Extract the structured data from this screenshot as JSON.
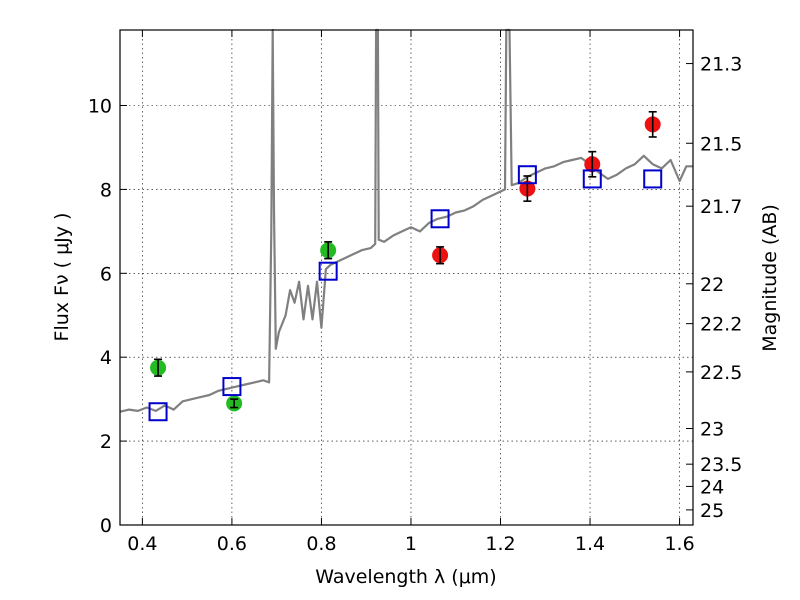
{
  "chart_data": {
    "type": "scatter",
    "xlabel": "Wavelength  λ (μm)",
    "ylabel": "Flux  Fν  ( μJy )",
    "ylabel_right": "Magnitude (AB)",
    "xlim": [
      0.35,
      1.63
    ],
    "ylim": [
      0,
      11.8
    ],
    "x_ticks": [
      0.4,
      0.6,
      0.8,
      1.0,
      1.2,
      1.4,
      1.6
    ],
    "x_tick_labels": [
      "0.4",
      "0.6",
      "0.8",
      "1",
      "1.2",
      "1.4",
      "1.6"
    ],
    "y_ticks": [
      0,
      2,
      4,
      6,
      8,
      10
    ],
    "y_tick_labels": [
      "0",
      "2",
      "4",
      "6",
      "8",
      "10"
    ],
    "mag_ticks": [
      {
        "label": "21.3",
        "flux": 11.0
      },
      {
        "label": "21.5",
        "flux": 9.1
      },
      {
        "label": "21.7",
        "flux": 7.6
      },
      {
        "label": "22",
        "flux": 5.75
      },
      {
        "label": "22.2",
        "flux": 4.8
      },
      {
        "label": "22.5",
        "flux": 3.65
      },
      {
        "label": "23",
        "flux": 2.3
      },
      {
        "label": "23.5",
        "flux": 1.45
      },
      {
        "label": "24",
        "flux": 0.92
      },
      {
        "label": "25",
        "flux": 0.36
      }
    ],
    "grid": true,
    "colors": {
      "spectrum": "#808080",
      "green_points": "#22bb22",
      "red_points": "#ee1111",
      "model_squares": "#0000cc",
      "errorbars": "#000000"
    },
    "series": [
      {
        "marker": "circle",
        "color": "#22bb22",
        "points": [
          {
            "x": 0.435,
            "y": 3.75,
            "err": 0.2
          },
          {
            "x": 0.605,
            "y": 2.9,
            "err": 0.1
          },
          {
            "x": 0.815,
            "y": 6.55,
            "err": 0.2
          }
        ]
      },
      {
        "marker": "circle",
        "color": "#ee1111",
        "points": [
          {
            "x": 1.065,
            "y": 6.43,
            "err": 0.2
          },
          {
            "x": 1.26,
            "y": 8.02,
            "err": 0.3
          },
          {
            "x": 1.405,
            "y": 8.6,
            "err": 0.3
          },
          {
            "x": 1.54,
            "y": 9.55,
            "err": 0.3
          }
        ]
      },
      {
        "marker": "square",
        "color": "#0000cc",
        "points": [
          {
            "x": 0.435,
            "y": 2.7
          },
          {
            "x": 0.6,
            "y": 3.3
          },
          {
            "x": 0.815,
            "y": 6.05
          },
          {
            "x": 1.065,
            "y": 7.3
          },
          {
            "x": 1.26,
            "y": 8.35
          },
          {
            "x": 1.405,
            "y": 8.25
          },
          {
            "x": 1.54,
            "y": 8.25
          }
        ]
      },
      {
        "marker": "line",
        "color": "#808080",
        "points": [
          [
            0.35,
            2.7
          ],
          [
            0.37,
            2.75
          ],
          [
            0.39,
            2.72
          ],
          [
            0.41,
            2.8
          ],
          [
            0.43,
            2.72
          ],
          [
            0.45,
            2.85
          ],
          [
            0.47,
            2.75
          ],
          [
            0.49,
            2.95
          ],
          [
            0.51,
            3.0
          ],
          [
            0.53,
            3.05
          ],
          [
            0.55,
            3.1
          ],
          [
            0.57,
            3.2
          ],
          [
            0.59,
            3.25
          ],
          [
            0.61,
            3.3
          ],
          [
            0.63,
            3.35
          ],
          [
            0.65,
            3.4
          ],
          [
            0.67,
            3.45
          ],
          [
            0.683,
            3.4
          ],
          [
            0.688,
            7.0
          ],
          [
            0.691,
            11.8
          ],
          [
            0.694,
            7.5
          ],
          [
            0.698,
            4.2
          ],
          [
            0.705,
            4.6
          ],
          [
            0.72,
            5.0
          ],
          [
            0.73,
            5.6
          ],
          [
            0.74,
            5.3
          ],
          [
            0.75,
            5.8
          ],
          [
            0.76,
            4.9
          ],
          [
            0.77,
            5.7
          ],
          [
            0.78,
            4.9
          ],
          [
            0.79,
            5.8
          ],
          [
            0.8,
            4.7
          ],
          [
            0.81,
            6.1
          ],
          [
            0.82,
            6.2
          ],
          [
            0.83,
            6.25
          ],
          [
            0.85,
            6.35
          ],
          [
            0.87,
            6.45
          ],
          [
            0.89,
            6.55
          ],
          [
            0.91,
            6.6
          ],
          [
            0.92,
            6.7
          ],
          [
            0.922,
            11.8
          ],
          [
            0.926,
            11.8
          ],
          [
            0.928,
            6.8
          ],
          [
            0.94,
            6.75
          ],
          [
            0.96,
            6.9
          ],
          [
            0.98,
            7.0
          ],
          [
            1.0,
            7.1
          ],
          [
            1.02,
            7.0
          ],
          [
            1.04,
            7.2
          ],
          [
            1.06,
            7.3
          ],
          [
            1.08,
            7.35
          ],
          [
            1.1,
            7.45
          ],
          [
            1.12,
            7.5
          ],
          [
            1.14,
            7.6
          ],
          [
            1.16,
            7.75
          ],
          [
            1.18,
            7.85
          ],
          [
            1.2,
            7.95
          ],
          [
            1.21,
            8.0
          ],
          [
            1.213,
            11.8
          ],
          [
            1.22,
            11.8
          ],
          [
            1.225,
            8.1
          ],
          [
            1.24,
            8.15
          ],
          [
            1.26,
            8.3
          ],
          [
            1.28,
            8.4
          ],
          [
            1.3,
            8.5
          ],
          [
            1.32,
            8.55
          ],
          [
            1.34,
            8.65
          ],
          [
            1.36,
            8.7
          ],
          [
            1.38,
            8.75
          ],
          [
            1.4,
            8.6
          ],
          [
            1.42,
            8.4
          ],
          [
            1.44,
            8.25
          ],
          [
            1.46,
            8.35
          ],
          [
            1.48,
            8.5
          ],
          [
            1.5,
            8.6
          ],
          [
            1.52,
            8.8
          ],
          [
            1.54,
            8.6
          ],
          [
            1.56,
            8.5
          ],
          [
            1.58,
            8.7
          ],
          [
            1.6,
            8.2
          ],
          [
            1.615,
            8.55
          ],
          [
            1.63,
            8.55
          ]
        ]
      }
    ]
  }
}
